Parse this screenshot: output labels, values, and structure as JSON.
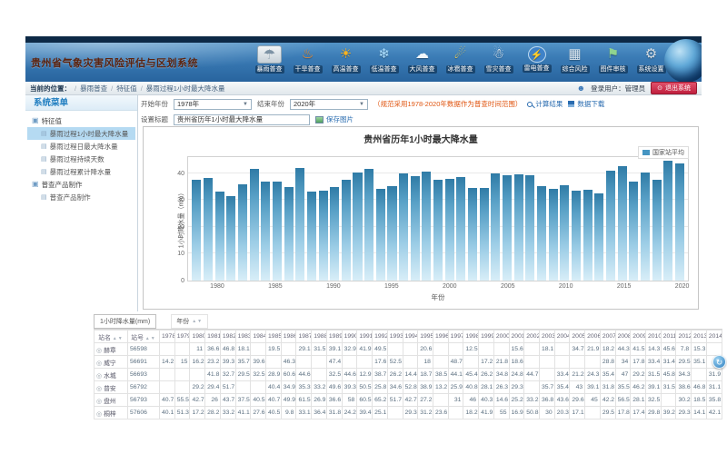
{
  "app": {
    "title": "贵州省气象灾害风险评估与区划系统"
  },
  "nav": {
    "items": [
      {
        "name": "rainstorm",
        "label": "暴雨普查",
        "glyph": "☂",
        "color": "#7d93a5",
        "active": true,
        "circle": false
      },
      {
        "name": "drought",
        "label": "干旱普查",
        "glyph": "♨",
        "color": "#ff8a1e",
        "active": false,
        "circle": false
      },
      {
        "name": "high-temp",
        "label": "高温普查",
        "glyph": "☀",
        "color": "#ffb41e",
        "active": false,
        "circle": false
      },
      {
        "name": "low-temp",
        "label": "低温普查",
        "glyph": "❄",
        "color": "#aee0ff",
        "active": false,
        "circle": false
      },
      {
        "name": "wind",
        "label": "大风普查",
        "glyph": "☁",
        "color": "#f2f7fa",
        "active": false,
        "circle": false
      },
      {
        "name": "hail",
        "label": "冰雹普查",
        "glyph": "☄",
        "color": "#ffd84d",
        "active": false,
        "circle": false
      },
      {
        "name": "snow",
        "label": "雪灾普查",
        "glyph": "☃",
        "color": "#ffffff",
        "active": false,
        "circle": false
      },
      {
        "name": "lightning",
        "label": "雷电普查",
        "glyph": "⚡",
        "color": "#ffe14d",
        "active": false,
        "circle": true
      },
      {
        "name": "composite-risk",
        "label": "综合风险",
        "glyph": "▦",
        "color": "#dfe8f0",
        "active": false,
        "circle": false
      },
      {
        "name": "map-review",
        "label": "图件审核",
        "glyph": "⚑",
        "color": "#8fd48f",
        "active": false,
        "circle": false
      },
      {
        "name": "system-settings",
        "label": "系统设置",
        "glyph": "⚙",
        "color": "#d5dde3",
        "active": false,
        "circle": false
      }
    ]
  },
  "breadcrumb": {
    "prefix": "当前的位置：",
    "items": [
      "暴雨普查",
      "特征值",
      "暴雨过程1小时最大降水量"
    ]
  },
  "user": {
    "login_label": "登录用户：管理员",
    "logout_label": "退出系统"
  },
  "sidebar": {
    "title": "系统菜单",
    "groups": [
      {
        "label": "特征值",
        "items": [
          "暴雨过程1小时最大降水量",
          "暴雨过程日最大降水量",
          "暴雨过程持续天数",
          "暴雨过程累计降水量"
        ]
      },
      {
        "label": "普查产品制作",
        "items": [
          "普查产品制作"
        ]
      }
    ],
    "selected": "暴雨过程1小时最大降水量"
  },
  "controls": {
    "start_label": "开始年份",
    "start_value": "1978年",
    "end_label": "结束年份",
    "end_value": "2020年",
    "note": "（规范采用1978-2020年数据作为普查时间范围）",
    "calc_label": "计算结果",
    "download_label": "数据下载",
    "title_label": "设置标题",
    "title_value": "贵州省历年1小时最大降水量",
    "save_image_label": "保存图片"
  },
  "chart_data": {
    "type": "bar",
    "title": "贵州省历年1小时最大降水量",
    "legend": [
      "国家站平均"
    ],
    "legend_position": "top-right",
    "xlabel": "年份",
    "ylabel": "1小时降水量（mm）",
    "grid": true,
    "ylim": [
      0,
      46
    ],
    "yticks": [
      0,
      10,
      20,
      30,
      40
    ],
    "xticks": [
      1980,
      1985,
      1990,
      1995,
      2000,
      2005,
      2010,
      2015,
      2020
    ],
    "x": [
      1978,
      1979,
      1980,
      1981,
      1982,
      1983,
      1984,
      1985,
      1986,
      1987,
      1988,
      1989,
      1990,
      1991,
      1992,
      1993,
      1994,
      1995,
      1996,
      1997,
      1998,
      1999,
      2000,
      2001,
      2002,
      2003,
      2004,
      2005,
      2006,
      2007,
      2008,
      2009,
      2010,
      2011,
      2012,
      2013,
      2014,
      2015,
      2016,
      2017,
      2018,
      2019,
      2020
    ],
    "series": [
      {
        "name": "国家站平均",
        "values": [
          37.5,
          38.2,
          33.2,
          31.5,
          36,
          41.7,
          37,
          37,
          34.8,
          41.8,
          33.2,
          33.5,
          35,
          37.4,
          40.3,
          41.5,
          34.3,
          35.1,
          39.9,
          38.8,
          40.6,
          37.7,
          37.8,
          38.6,
          34.6,
          34.5,
          39.9,
          39.1,
          39.6,
          39.1,
          35.1,
          34.3,
          35.5,
          33.4,
          33.9,
          32.5,
          41.1,
          42.7,
          36.9,
          40.1,
          37.6,
          44.5,
          43.7
        ]
      }
    ],
    "bar_color_top": "#2f7ba6",
    "bar_color_bottom": "#d8eef8"
  },
  "table": {
    "unit_label": "1小时降水量(mm)",
    "year_group_label": "年份",
    "col_station": "站名",
    "col_id": "站号",
    "years": [
      1978,
      1979,
      1980,
      1981,
      1982,
      1983,
      1984,
      1985,
      1986,
      1987,
      1988,
      1989,
      1990,
      1991,
      1992,
      1993,
      1994,
      1995,
      1996,
      1997,
      1998,
      1999,
      2000,
      2001,
      2002,
      2003,
      2004,
      2005,
      2006,
      2007,
      2008,
      2009,
      2010,
      2011,
      2012,
      2013,
      2014
    ],
    "rows": [
      {
        "name": "赫章",
        "id": "56598",
        "values": [
          "",
          "",
          "11",
          "36.6",
          "46.8",
          "18.1",
          "",
          "19.5",
          "",
          "29.1",
          "31.5",
          "39.1",
          "32.9",
          "41.9",
          "49.5",
          "",
          "",
          "20.6",
          "",
          "",
          "12.5",
          "",
          "",
          "15.6",
          "",
          "18.1",
          "",
          "34.7",
          "21.9",
          "18.2",
          "44.3",
          "41.5",
          "14.3",
          "45.6",
          "7.8",
          "15.3",
          ""
        ]
      },
      {
        "name": "威宁",
        "id": "56691",
        "values": [
          "14.2",
          "15",
          "16.2",
          "23.2",
          "39.3",
          "35.7",
          "39.6",
          "",
          "46.3",
          "",
          "",
          "47.4",
          "",
          "",
          "17.6",
          "52.5",
          "",
          "18",
          "",
          "48.7",
          "",
          "17.2",
          "21.8",
          "18.6",
          "",
          "",
          "",
          "",
          "",
          "28.8",
          "34",
          "17.8",
          "33.4",
          "31.4",
          "29.5",
          "35.1",
          ""
        ]
      },
      {
        "name": "水城",
        "id": "56693",
        "values": [
          "",
          "",
          "",
          "41.8",
          "32.7",
          "29.5",
          "32.5",
          "28.9",
          "60.6",
          "44.6",
          "",
          "32.5",
          "44.6",
          "12.9",
          "38.7",
          "26.2",
          "14.4",
          "18.7",
          "38.5",
          "44.1",
          "45.4",
          "26.2",
          "34.8",
          "24.8",
          "44.7",
          "",
          "33.4",
          "21.2",
          "24.3",
          "35.4",
          "47",
          "29.2",
          "31.5",
          "45.8",
          "34.3",
          "",
          "31.9"
        ]
      },
      {
        "name": "普安",
        "id": "56792",
        "values": [
          "",
          "",
          "29.2",
          "29.4",
          "51.7",
          "",
          "",
          "40.4",
          "34.9",
          "35.3",
          "33.2",
          "49.6",
          "39.3",
          "50.5",
          "25.8",
          "34.6",
          "52.8",
          "38.9",
          "13.2",
          "25.9",
          "40.8",
          "28.1",
          "26.3",
          "29.3",
          "",
          "35.7",
          "35.4",
          "43",
          "39.1",
          "31.8",
          "35.5",
          "46.2",
          "39.1",
          "31.5",
          "38.6",
          "46.8",
          "31.1"
        ]
      },
      {
        "name": "盘州",
        "id": "56793",
        "values": [
          "40.7",
          "55.5",
          "42.7",
          "26",
          "43.7",
          "37.5",
          "40.5",
          "40.7",
          "49.9",
          "61.5",
          "26.9",
          "36.6",
          "58",
          "60.5",
          "65.2",
          "51.7",
          "42.7",
          "27.2",
          "",
          "31",
          "46",
          "40.3",
          "14.6",
          "25.2",
          "33.2",
          "36.8",
          "43.6",
          "29.6",
          "45",
          "42.2",
          "56.5",
          "28.1",
          "32.5",
          "",
          "30.2",
          "18.5",
          "35.8"
        ]
      },
      {
        "name": "桐梓",
        "id": "57606",
        "values": [
          "40.1",
          "51.3",
          "17.2",
          "28.2",
          "33.2",
          "41.1",
          "27.6",
          "40.5",
          "9.8",
          "33.1",
          "36.4",
          "31.8",
          "24.2",
          "39.4",
          "25.1",
          "",
          "29.3",
          "31.2",
          "23.6",
          "",
          "18.2",
          "41.9",
          "55",
          "16.9",
          "50.8",
          "30",
          "20.3",
          "17.1",
          "",
          "29.5",
          "17.8",
          "17.4",
          "29.8",
          "39.2",
          "29.3",
          "14.1",
          "42.1"
        ]
      }
    ]
  },
  "misc": {
    "refresh_glyph": "↻",
    "select_arrow": "▼",
    "sort_glyphs": "▲▼",
    "radio_glyph": "◎",
    "folder_glyph": "▣",
    "doc_glyph": "▤",
    "person_glyph": "☻",
    "power_glyph": "⊙"
  }
}
